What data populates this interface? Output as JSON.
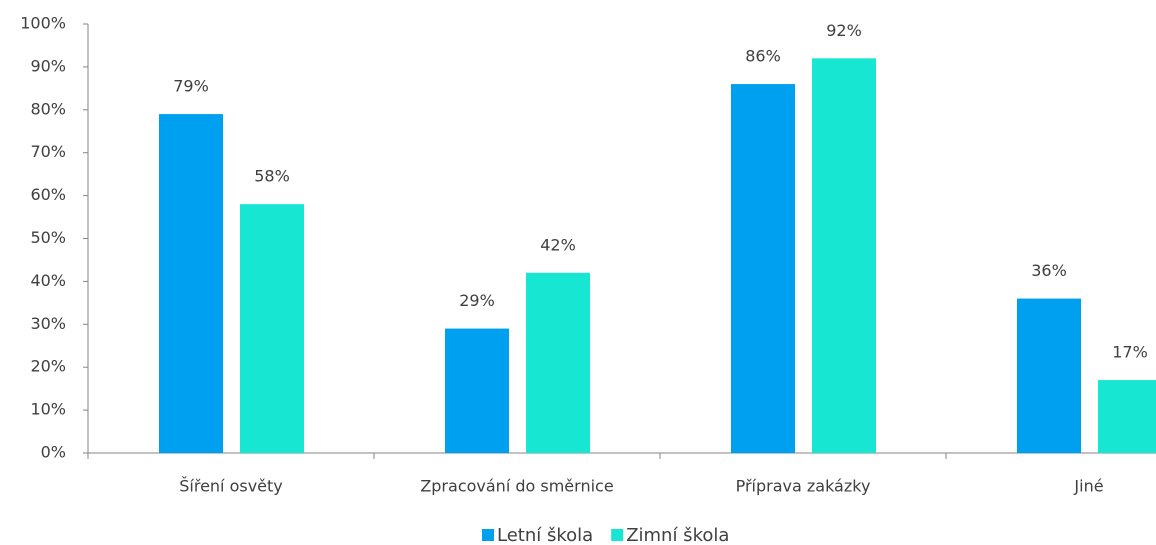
{
  "chart_data": {
    "type": "bar",
    "categories": [
      "Šíření osvěty",
      "Zpracování do směrnice",
      "Příprava zakázky",
      "Jiné"
    ],
    "series": [
      {
        "name": "Letní škola",
        "color": "#00a0f0",
        "values": [
          79,
          29,
          86,
          36
        ],
        "value_labels": [
          "79%",
          "29%",
          "86%",
          "36%"
        ]
      },
      {
        "name": "Zimní škola",
        "color": "#17e6d2",
        "values": [
          58,
          42,
          92,
          17
        ],
        "value_labels": [
          "58%",
          "42%",
          "92%",
          "17%"
        ]
      }
    ],
    "ylim": [
      0,
      100
    ],
    "yticks": [
      {
        "value": 0,
        "label": "0%"
      },
      {
        "value": 10,
        "label": "10%"
      },
      {
        "value": 20,
        "label": "20%"
      },
      {
        "value": 30,
        "label": "30%"
      },
      {
        "value": 40,
        "label": "40%"
      },
      {
        "value": 50,
        "label": "50%"
      },
      {
        "value": 60,
        "label": "60%"
      },
      {
        "value": 70,
        "label": "70%"
      },
      {
        "value": 80,
        "label": "80%"
      },
      {
        "value": 90,
        "label": "90%"
      },
      {
        "value": 100,
        "label": "100%"
      }
    ],
    "grid": false,
    "legend": "bottom"
  }
}
